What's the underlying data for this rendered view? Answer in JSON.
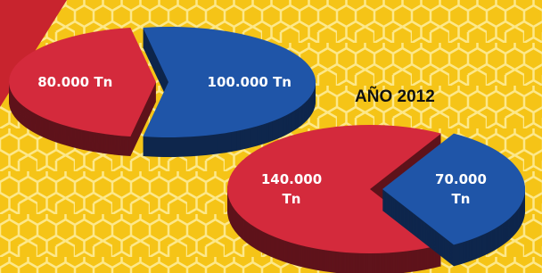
{
  "chart_data": [
    {
      "type": "pie",
      "values": [
        80000,
        100000
      ],
      "value_labels": [
        "80.000 Tn",
        "100.000 Tn"
      ],
      "colors": [
        "#d42a3c",
        "#1f55a8"
      ]
    },
    {
      "type": "pie",
      "title": "AÑO 2012",
      "values": [
        140000,
        70000
      ],
      "value_labels": [
        "140.000 Tn",
        "70.000 Tn"
      ],
      "colors": [
        "#d42a3c",
        "#1f55a8"
      ]
    }
  ]
}
